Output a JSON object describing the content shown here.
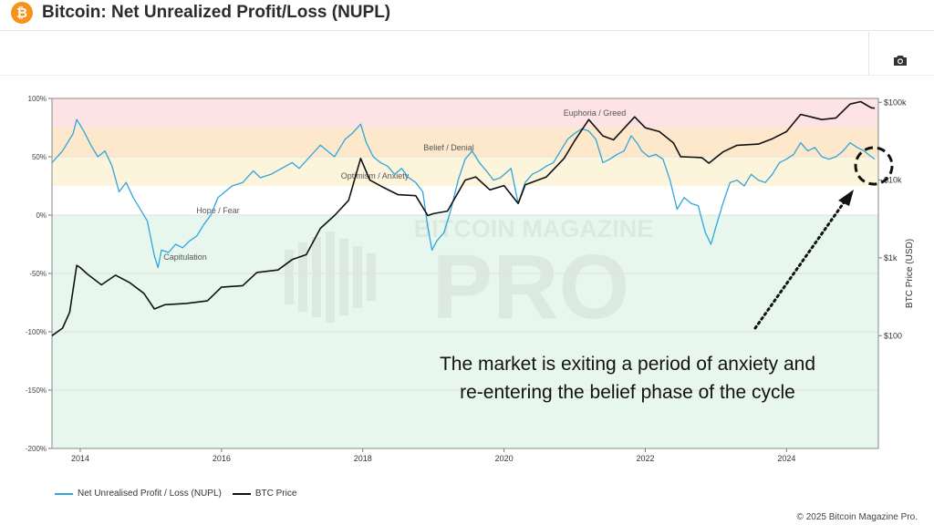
{
  "header": {
    "title": "Bitcoin: Net Unrealized Profit/Loss (NUPL)",
    "logo_glyph": "₿"
  },
  "toolbar": {
    "screenshot_icon": "camera-icon"
  },
  "watermark": {
    "line1": "BITCOIN MAGAZINE",
    "line2": "PRO"
  },
  "annotation": {
    "text_line1": "The market is exiting a period of anxiety and",
    "text_line2": "re-entering the belief phase of the cycle"
  },
  "legend": {
    "nupl_label": "Net Unrealised Profit / Loss (NUPL)",
    "price_label": "BTC Price"
  },
  "footer": {
    "copyright": "© 2025 Bitcoin Magazine Pro."
  },
  "colors": {
    "nupl_line": "#2ea6dc",
    "price_line": "#111111",
    "zone_euphoria": "#fde3e4",
    "zone_belief": "#fde8cc",
    "zone_optimism": "#fdf4dc",
    "zone_capitulation": "#e8f7ee"
  },
  "chart_data": {
    "type": "line",
    "title": "Bitcoin: Net Unrealized Profit/Loss (NUPL)",
    "x_ticks": [
      "2014",
      "2016",
      "2018",
      "2020",
      "2022",
      "2024"
    ],
    "xlim": [
      2013.6,
      2025.3
    ],
    "left_axis": {
      "ticks": [
        "100%",
        "50%",
        "0%",
        "-50%",
        "-100%",
        "-150%",
        "-200%"
      ],
      "tick_values": [
        100,
        50,
        0,
        -50,
        -100,
        -150,
        -200
      ],
      "ylim": [
        -200,
        100
      ]
    },
    "right_axis": {
      "label": "BTC Price (USD)",
      "scale": "log",
      "ticks": [
        "$100k",
        "$10k",
        "$1k",
        "$100"
      ],
      "tick_values": [
        100000,
        10000,
        1000,
        100
      ],
      "ylim_log10": [
        0.55,
        5.05
      ]
    },
    "zones": [
      {
        "name": "Euphoria / Greed",
        "from": 75,
        "to": 100
      },
      {
        "name": "Belief / Denial",
        "from": 50,
        "to": 75
      },
      {
        "name": "Optimism / Anxiety",
        "from": 25,
        "to": 50
      },
      {
        "name": "Hope / Fear",
        "from": 0,
        "to": 25
      },
      {
        "name": "Capitulation",
        "from": -200,
        "to": 0
      }
    ],
    "series": [
      {
        "name": "Net Unrealised Profit / Loss (NUPL)",
        "axis": "left",
        "points": [
          [
            2013.6,
            45
          ],
          [
            2013.75,
            55
          ],
          [
            2013.9,
            70
          ],
          [
            2013.95,
            82
          ],
          [
            2014.05,
            72
          ],
          [
            2014.15,
            60
          ],
          [
            2014.25,
            50
          ],
          [
            2014.35,
            55
          ],
          [
            2014.45,
            42
          ],
          [
            2014.55,
            20
          ],
          [
            2014.65,
            28
          ],
          [
            2014.75,
            15
          ],
          [
            2014.85,
            5
          ],
          [
            2014.95,
            -5
          ],
          [
            2015.0,
            -20
          ],
          [
            2015.05,
            -35
          ],
          [
            2015.1,
            -45
          ],
          [
            2015.15,
            -30
          ],
          [
            2015.25,
            -32
          ],
          [
            2015.35,
            -25
          ],
          [
            2015.45,
            -28
          ],
          [
            2015.55,
            -22
          ],
          [
            2015.65,
            -18
          ],
          [
            2015.75,
            -8
          ],
          [
            2015.85,
            0
          ],
          [
            2015.95,
            15
          ],
          [
            2016.05,
            20
          ],
          [
            2016.15,
            25
          ],
          [
            2016.3,
            28
          ],
          [
            2016.45,
            38
          ],
          [
            2016.55,
            32
          ],
          [
            2016.7,
            35
          ],
          [
            2016.85,
            40
          ],
          [
            2017.0,
            45
          ],
          [
            2017.1,
            40
          ],
          [
            2017.25,
            50
          ],
          [
            2017.4,
            60
          ],
          [
            2017.5,
            55
          ],
          [
            2017.6,
            50
          ],
          [
            2017.75,
            65
          ],
          [
            2017.85,
            70
          ],
          [
            2017.97,
            78
          ],
          [
            2018.05,
            62
          ],
          [
            2018.15,
            50
          ],
          [
            2018.25,
            45
          ],
          [
            2018.35,
            42
          ],
          [
            2018.45,
            35
          ],
          [
            2018.55,
            40
          ],
          [
            2018.65,
            32
          ],
          [
            2018.75,
            28
          ],
          [
            2018.85,
            20
          ],
          [
            2018.92,
            -10
          ],
          [
            2018.98,
            -30
          ],
          [
            2019.05,
            -22
          ],
          [
            2019.15,
            -15
          ],
          [
            2019.25,
            5
          ],
          [
            2019.35,
            30
          ],
          [
            2019.45,
            48
          ],
          [
            2019.55,
            55
          ],
          [
            2019.65,
            45
          ],
          [
            2019.75,
            38
          ],
          [
            2019.85,
            30
          ],
          [
            2019.95,
            32
          ],
          [
            2020.1,
            40
          ],
          [
            2020.2,
            10
          ],
          [
            2020.3,
            28
          ],
          [
            2020.4,
            35
          ],
          [
            2020.5,
            38
          ],
          [
            2020.6,
            42
          ],
          [
            2020.7,
            45
          ],
          [
            2020.8,
            55
          ],
          [
            2020.9,
            65
          ],
          [
            2021.0,
            70
          ],
          [
            2021.1,
            74
          ],
          [
            2021.2,
            72
          ],
          [
            2021.3,
            65
          ],
          [
            2021.4,
            45
          ],
          [
            2021.5,
            48
          ],
          [
            2021.6,
            52
          ],
          [
            2021.7,
            55
          ],
          [
            2021.8,
            68
          ],
          [
            2021.88,
            62
          ],
          [
            2021.95,
            55
          ],
          [
            2022.05,
            50
          ],
          [
            2022.15,
            52
          ],
          [
            2022.25,
            48
          ],
          [
            2022.35,
            30
          ],
          [
            2022.45,
            5
          ],
          [
            2022.55,
            15
          ],
          [
            2022.65,
            10
          ],
          [
            2022.75,
            8
          ],
          [
            2022.85,
            -15
          ],
          [
            2022.93,
            -25
          ],
          [
            2023.0,
            -10
          ],
          [
            2023.1,
            10
          ],
          [
            2023.2,
            28
          ],
          [
            2023.3,
            30
          ],
          [
            2023.4,
            25
          ],
          [
            2023.5,
            35
          ],
          [
            2023.6,
            30
          ],
          [
            2023.7,
            28
          ],
          [
            2023.8,
            35
          ],
          [
            2023.9,
            45
          ],
          [
            2024.0,
            48
          ],
          [
            2024.1,
            52
          ],
          [
            2024.2,
            62
          ],
          [
            2024.3,
            55
          ],
          [
            2024.4,
            58
          ],
          [
            2024.5,
            50
          ],
          [
            2024.6,
            48
          ],
          [
            2024.7,
            50
          ],
          [
            2024.8,
            55
          ],
          [
            2024.9,
            62
          ],
          [
            2025.0,
            58
          ],
          [
            2025.1,
            55
          ],
          [
            2025.2,
            50
          ],
          [
            2025.25,
            48
          ]
        ]
      },
      {
        "name": "BTC Price",
        "axis": "right",
        "points": [
          [
            2013.6,
            100
          ],
          [
            2013.75,
            125
          ],
          [
            2013.85,
            200
          ],
          [
            2013.95,
            800
          ],
          [
            2014.0,
            750
          ],
          [
            2014.1,
            620
          ],
          [
            2014.3,
            450
          ],
          [
            2014.5,
            600
          ],
          [
            2014.7,
            480
          ],
          [
            2014.9,
            350
          ],
          [
            2015.05,
            220
          ],
          [
            2015.2,
            250
          ],
          [
            2015.5,
            260
          ],
          [
            2015.8,
            280
          ],
          [
            2016.0,
            420
          ],
          [
            2016.3,
            440
          ],
          [
            2016.5,
            650
          ],
          [
            2016.8,
            700
          ],
          [
            2017.0,
            950
          ],
          [
            2017.2,
            1100
          ],
          [
            2017.4,
            2400
          ],
          [
            2017.6,
            3500
          ],
          [
            2017.8,
            5500
          ],
          [
            2017.97,
            19000
          ],
          [
            2018.1,
            10000
          ],
          [
            2018.3,
            8000
          ],
          [
            2018.5,
            6500
          ],
          [
            2018.75,
            6300
          ],
          [
            2018.92,
            3500
          ],
          [
            2019.0,
            3700
          ],
          [
            2019.2,
            4000
          ],
          [
            2019.45,
            10000
          ],
          [
            2019.6,
            11000
          ],
          [
            2019.8,
            7500
          ],
          [
            2020.0,
            8500
          ],
          [
            2020.2,
            5000
          ],
          [
            2020.3,
            8700
          ],
          [
            2020.6,
            11000
          ],
          [
            2020.85,
            19000
          ],
          [
            2021.0,
            32000
          ],
          [
            2021.2,
            60000
          ],
          [
            2021.4,
            37000
          ],
          [
            2021.55,
            33000
          ],
          [
            2021.85,
            65000
          ],
          [
            2022.0,
            47000
          ],
          [
            2022.2,
            42000
          ],
          [
            2022.4,
            30000
          ],
          [
            2022.5,
            20000
          ],
          [
            2022.8,
            19500
          ],
          [
            2022.9,
            16500
          ],
          [
            2023.1,
            23000
          ],
          [
            2023.3,
            28000
          ],
          [
            2023.6,
            29000
          ],
          [
            2023.8,
            34000
          ],
          [
            2024.0,
            42000
          ],
          [
            2024.2,
            70000
          ],
          [
            2024.5,
            60000
          ],
          [
            2024.7,
            63000
          ],
          [
            2024.9,
            95000
          ],
          [
            2025.05,
            102000
          ],
          [
            2025.2,
            85000
          ],
          [
            2025.25,
            84000
          ]
        ]
      }
    ]
  }
}
